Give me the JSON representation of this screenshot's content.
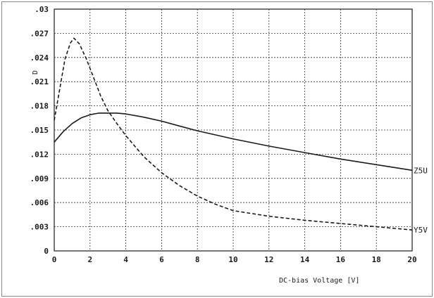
{
  "chart_data": {
    "type": "line",
    "title": "",
    "xlabel": "DC-bias Voltage [V]",
    "ylabel": "D",
    "xlim": [
      0,
      20
    ],
    "ylim": [
      0,
      0.03
    ],
    "x_ticks": [
      "0",
      "2",
      "4",
      "6",
      "8",
      "10",
      "12",
      "14",
      "16",
      "18",
      "20"
    ],
    "y_ticks": [
      "0",
      ".003",
      ".006",
      ".009",
      ".012",
      ".015",
      ".018",
      ".021",
      ".024",
      ".027",
      ".03"
    ],
    "grid": true,
    "series": [
      {
        "name": "Z5U",
        "style": "solid",
        "x": [
          0,
          0.5,
          1,
          1.5,
          2,
          2.5,
          3,
          3.5,
          4,
          5,
          6,
          7,
          8,
          9,
          10,
          12,
          14,
          16,
          18,
          20
        ],
        "y": [
          0.0135,
          0.0148,
          0.0158,
          0.0165,
          0.0169,
          0.0171,
          0.0171,
          0.0171,
          0.017,
          0.0166,
          0.0161,
          0.0155,
          0.0149,
          0.0144,
          0.0139,
          0.013,
          0.0122,
          0.0114,
          0.0107,
          0.01
        ]
      },
      {
        "name": "Y5V",
        "style": "dashed",
        "x": [
          0,
          0.3,
          0.6,
          0.9,
          1.1,
          1.4,
          1.8,
          2.2,
          2.6,
          3,
          3.5,
          4,
          5,
          6,
          7,
          8,
          9,
          10,
          12,
          14,
          16,
          18,
          20
        ],
        "y": [
          0.0162,
          0.02,
          0.0238,
          0.0258,
          0.0264,
          0.0257,
          0.0238,
          0.0215,
          0.0192,
          0.0174,
          0.0158,
          0.0143,
          0.0117,
          0.0097,
          0.0081,
          0.0068,
          0.0058,
          0.005,
          0.0043,
          0.0038,
          0.0034,
          0.003,
          0.0026
        ]
      }
    ],
    "series_labels_position": "right end of each line"
  },
  "colors": {
    "line": "#1a1a1a",
    "grid": "#333333",
    "frame": "#8a8a8a"
  }
}
